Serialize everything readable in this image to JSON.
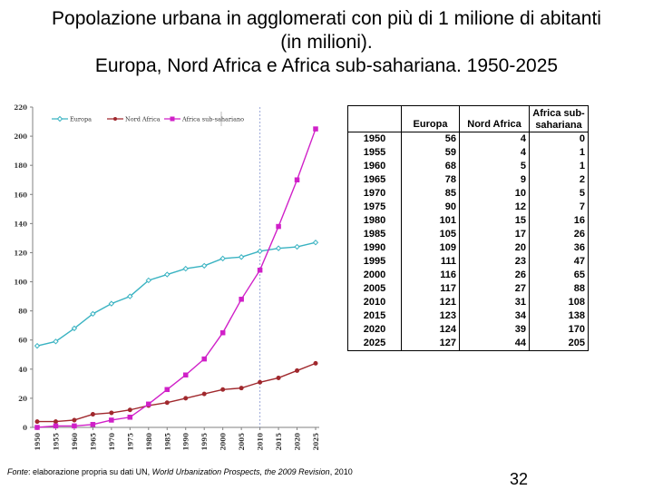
{
  "title": {
    "line1": "Popolazione urbana in agglomerati con più di 1 milione di abitanti",
    "line2": "(in milioni).",
    "line3": "Europa, Nord Africa e Africa sub-sahariana. 1950-2025"
  },
  "colors": {
    "europa": "#3ab3c2",
    "nord_africa": "#a0282d",
    "africa_sub": "#d020c8",
    "grid": "#c0c0c0",
    "vline": "#9aa8d8"
  },
  "chart_data": {
    "type": "line",
    "x": [
      "1950",
      "1955",
      "1960",
      "1965",
      "1970",
      "1975",
      "1980",
      "1985",
      "1990",
      "1995",
      "2000",
      "2005",
      "2010",
      "2015",
      "2020",
      "2025"
    ],
    "series": [
      {
        "name": "Europa",
        "values": [
          56,
          59,
          68,
          78,
          85,
          90,
          101,
          105,
          109,
          111,
          116,
          117,
          121,
          123,
          124,
          127
        ]
      },
      {
        "name": "Nord Africa",
        "values": [
          4,
          4,
          5,
          9,
          10,
          12,
          15,
          17,
          20,
          23,
          26,
          27,
          31,
          34,
          39,
          44
        ]
      },
      {
        "name": "Africa sub-sahariano",
        "values": [
          0,
          1,
          1,
          2,
          5,
          7,
          16,
          26,
          36,
          47,
          65,
          88,
          108,
          138,
          170,
          205
        ]
      }
    ],
    "yticks": [
      "0",
      "20",
      "40",
      "60",
      "80",
      "100",
      "120",
      "140",
      "160",
      "180",
      "200",
      "220"
    ],
    "ylim": [
      0,
      220
    ],
    "legend_position": "top",
    "grid": false,
    "vertical_marker": "2010"
  },
  "table": {
    "headers": [
      "",
      "Europa",
      "Nord Africa",
      "Africa sub-sahariano"
    ],
    "rows": [
      [
        "1950",
        "56",
        "4",
        "0"
      ],
      [
        "1955",
        "59",
        "4",
        "1"
      ],
      [
        "1960",
        "68",
        "5",
        "1"
      ],
      [
        "1965",
        "78",
        "9",
        "2"
      ],
      [
        "1970",
        "85",
        "10",
        "5"
      ],
      [
        "1975",
        "90",
        "12",
        "7"
      ],
      [
        "1980",
        "101",
        "15",
        "16"
      ],
      [
        "1985",
        "105",
        "17",
        "26"
      ],
      [
        "1990",
        "109",
        "20",
        "36"
      ],
      [
        "1995",
        "111",
        "23",
        "47"
      ],
      [
        "2000",
        "116",
        "26",
        "65"
      ],
      [
        "2005",
        "117",
        "27",
        "88"
      ],
      [
        "2010",
        "121",
        "31",
        "108"
      ],
      [
        "2015",
        "123",
        "34",
        "138"
      ],
      [
        "2020",
        "124",
        "39",
        "170"
      ],
      [
        "2025",
        "127",
        "44",
        "205"
      ]
    ]
  },
  "table_header_labels": {
    "europa": "Europa",
    "nord_africa": "Nord Africa",
    "africa_sub_line1": "Africa sub-",
    "africa_sub_line2": "sahariana"
  },
  "source": {
    "label": "Fonte",
    "text_a": ": elaborazione propria su dati UN, ",
    "publication": "World Urbanization Prospects, the 2009 Revision",
    "text_b": ", 2010"
  },
  "page_number": "32"
}
